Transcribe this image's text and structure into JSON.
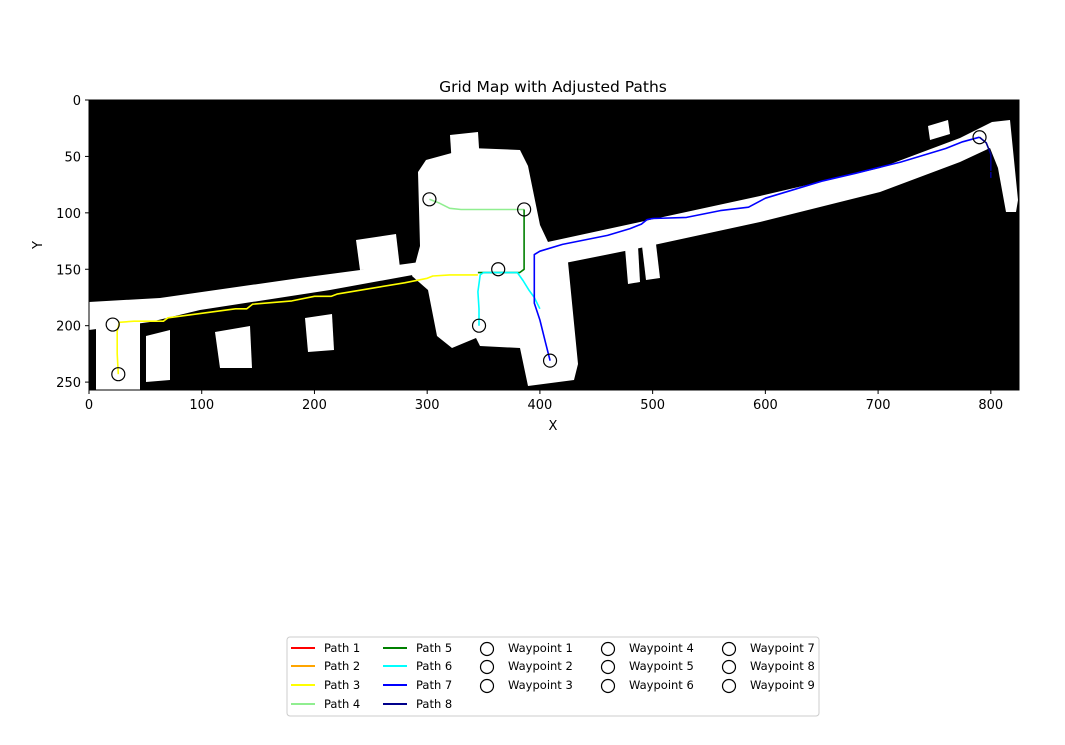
{
  "chart_data": {
    "type": "line",
    "title": "Grid Map with Adjusted Paths",
    "xlabel": "X",
    "ylabel": "Y",
    "xlim": [
      0,
      825
    ],
    "ylim": [
      257,
      0
    ],
    "xticks": [
      0,
      100,
      200,
      300,
      400,
      500,
      600,
      700,
      800
    ],
    "yticks": [
      0,
      50,
      100,
      150,
      200,
      250
    ],
    "background": "occupancy grid map (free space white, obstacles black)",
    "series": [
      {
        "name": "Path 1",
        "color": "#ff0000",
        "x": [],
        "y": []
      },
      {
        "name": "Path 2",
        "color": "#ffa500",
        "x": [],
        "y": []
      },
      {
        "name": "Path 3",
        "color": "#ffff00",
        "x": [
          26,
          25,
          25,
          27,
          40,
          66,
          70,
          100,
          130,
          140,
          145,
          180,
          200,
          215,
          220,
          250,
          280,
          300,
          305,
          320,
          345
        ],
        "y": [
          243,
          225,
          205,
          197,
          196,
          196,
          193,
          189,
          185,
          185,
          181,
          178,
          174,
          174,
          172,
          167,
          162,
          158,
          156,
          155,
          155
        ]
      },
      {
        "name": "Path 4",
        "color": "#90ee90",
        "x": [
          302,
          310,
          320,
          330,
          360,
          386
        ],
        "y": [
          88,
          91,
          96,
          97,
          97,
          97
        ]
      },
      {
        "name": "Path 5",
        "color": "#008000",
        "x": [
          386,
          386,
          386,
          382,
          345
        ],
        "y": [
          97,
          120,
          150,
          153,
          153
        ]
      },
      {
        "name": "Path 6",
        "color": "#00ffff",
        "x": [
          346,
          346,
          345,
          347,
          350,
          380,
          385,
          390,
          395,
          400
        ],
        "y": [
          200,
          185,
          170,
          155,
          153,
          153,
          160,
          168,
          175,
          185
        ]
      },
      {
        "name": "Path 7",
        "color": "#0000ff",
        "x": [
          409,
          405,
          400,
          395,
          395,
          395,
          400,
          420,
          460,
          480,
          490,
          495,
          500,
          530,
          560,
          585,
          600,
          650,
          680,
          720,
          760,
          775,
          790
        ],
        "y": [
          231,
          215,
          195,
          180,
          160,
          137,
          134,
          128,
          120,
          114,
          110,
          106,
          105,
          104,
          98,
          95,
          87,
          72,
          65,
          55,
          43,
          37,
          33
        ]
      },
      {
        "name": "Path 8",
        "color": "#00008b",
        "x": [
          790,
          796,
          800,
          800
        ],
        "y": [
          33,
          38,
          48,
          69
        ]
      }
    ],
    "waypoints": [
      {
        "name": "Waypoint 1",
        "x": 21,
        "y": 199
      },
      {
        "name": "Waypoint 2",
        "x": 26,
        "y": 243
      },
      {
        "name": "Waypoint 3",
        "x": 302,
        "y": 88
      },
      {
        "name": "Waypoint 4",
        "x": 386,
        "y": 97
      },
      {
        "name": "Waypoint 5",
        "x": 363,
        "y": 150
      },
      {
        "name": "Waypoint 6",
        "x": 346,
        "y": 200
      },
      {
        "name": "Waypoint 7",
        "x": 409,
        "y": 231
      },
      {
        "name": "Waypoint 8",
        "x": 790,
        "y": 33
      },
      {
        "name": "Waypoint 9",
        "x": 800,
        "y": 69
      }
    ],
    "legend": {
      "placement": "bottom-center",
      "columns": 5,
      "entries": [
        "Path 1",
        "Path 2",
        "Path 3",
        "Path 4",
        "Path 5",
        "Path 6",
        "Path 7",
        "Path 8",
        "Waypoint 1",
        "Waypoint 2",
        "Waypoint 3",
        "Waypoint 4",
        "Waypoint 5",
        "Waypoint 6",
        "Waypoint 7",
        "Waypoint 8",
        "Waypoint 9"
      ]
    }
  }
}
